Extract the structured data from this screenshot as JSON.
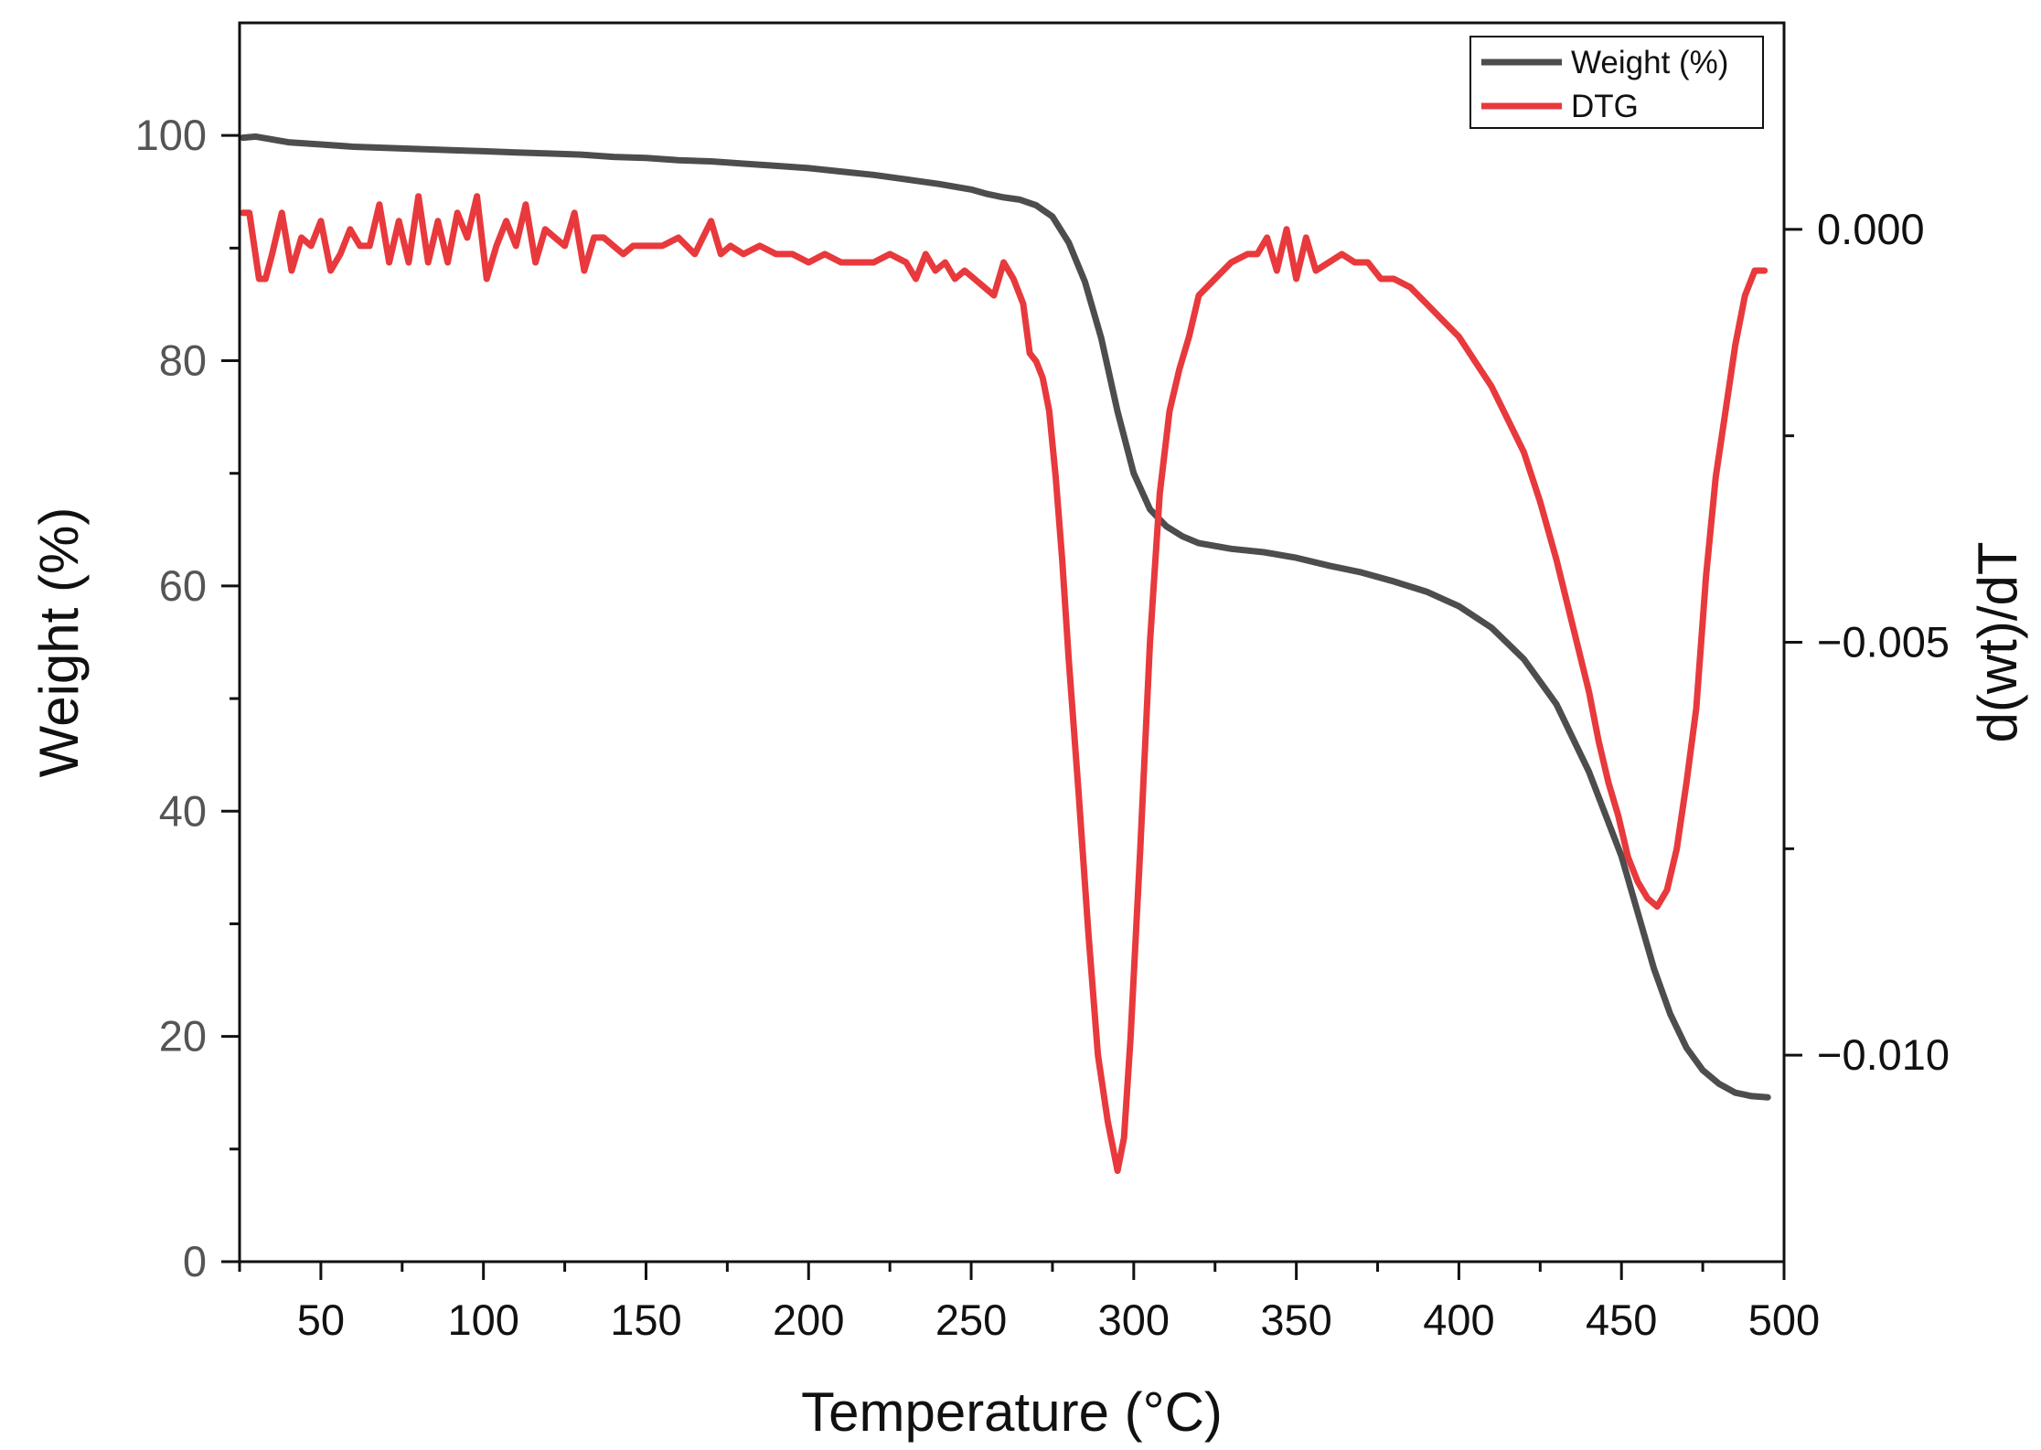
{
  "chart_data": {
    "type": "line",
    "title": "",
    "xlabel": "Temperature (°C)",
    "ylabel": "Weight (%)",
    "y2label": "d(wt)/dT",
    "xlim": [
      25,
      500
    ],
    "ylim": [
      0,
      110
    ],
    "y2lim": [
      -0.0125,
      0.0025
    ],
    "xticks": [
      50,
      100,
      150,
      200,
      250,
      300,
      350,
      400,
      450,
      500
    ],
    "xtick_labels": [
      "50",
      "100",
      "150",
      "200",
      "250",
      "300",
      "350",
      "400",
      "450",
      "500"
    ],
    "yticks": [
      0,
      20,
      40,
      60,
      80,
      100
    ],
    "ytick_labels": [
      "0",
      "20",
      "40",
      "60",
      "80",
      "100"
    ],
    "y2ticks": [
      0.0,
      -0.005,
      -0.01
    ],
    "y2tick_labels": [
      "0.000",
      "−0.005",
      "−0.010"
    ],
    "y2minor": [
      -0.0025,
      -0.0075
    ],
    "legend": {
      "position": "top-right",
      "entries": [
        "Weight (%)",
        "DTG"
      ]
    },
    "series": [
      {
        "name": "Weight (%)",
        "axis": "left",
        "color": "#4d4d4d",
        "x": [
          26,
          30,
          40,
          50,
          60,
          70,
          80,
          90,
          100,
          110,
          120,
          130,
          140,
          150,
          160,
          170,
          180,
          190,
          200,
          210,
          220,
          230,
          240,
          250,
          255,
          260,
          265,
          270,
          275,
          280,
          285,
          290,
          295,
          300,
          305,
          310,
          315,
          320,
          330,
          340,
          350,
          360,
          370,
          380,
          390,
          400,
          410,
          420,
          430,
          440,
          450,
          455,
          460,
          465,
          470,
          475,
          480,
          485,
          490,
          495
        ],
        "values": [
          99.8,
          99.9,
          99.4,
          99.2,
          99.0,
          98.9,
          98.8,
          98.7,
          98.6,
          98.5,
          98.4,
          98.3,
          98.1,
          98.0,
          97.8,
          97.7,
          97.5,
          97.3,
          97.1,
          96.8,
          96.5,
          96.1,
          95.7,
          95.2,
          94.8,
          94.5,
          94.3,
          93.8,
          92.8,
          90.5,
          87.0,
          82.0,
          75.5,
          70.0,
          66.8,
          65.3,
          64.4,
          63.8,
          63.3,
          63.0,
          62.5,
          61.8,
          61.2,
          60.4,
          59.5,
          58.2,
          56.3,
          53.5,
          49.5,
          43.5,
          36.0,
          31.0,
          26.0,
          22.0,
          19.0,
          17.0,
          15.8,
          15.0,
          14.7,
          14.6
        ]
      },
      {
        "name": "DTG",
        "axis": "right",
        "color": "#e8393c",
        "x": [
          26,
          28,
          31,
          33,
          35,
          38,
          41,
          44,
          47,
          50,
          53,
          56,
          59,
          62,
          65,
          68,
          71,
          74,
          77,
          80,
          83,
          86,
          89,
          92,
          95,
          98,
          101,
          104,
          107,
          110,
          113,
          116,
          119,
          122,
          125,
          128,
          131,
          134,
          137,
          140,
          143,
          146,
          150,
          155,
          160,
          165,
          170,
          173,
          176,
          180,
          185,
          190,
          195,
          200,
          205,
          210,
          215,
          220,
          225,
          230,
          233,
          236,
          239,
          242,
          245,
          248,
          251,
          254,
          257,
          260,
          263,
          266,
          268,
          270,
          272,
          274,
          276,
          278,
          280,
          283,
          286,
          289,
          292,
          295,
          297,
          299,
          302,
          305,
          308,
          311,
          314,
          317,
          320,
          325,
          330,
          335,
          338,
          341,
          344,
          347,
          350,
          353,
          356,
          360,
          364,
          368,
          372,
          376,
          380,
          385,
          390,
          395,
          400,
          405,
          410,
          415,
          420,
          425,
          430,
          435,
          440,
          443,
          446,
          449,
          452,
          455,
          458,
          461,
          464,
          467,
          470,
          473,
          476,
          479,
          482,
          485,
          488,
          491,
          494
        ],
        "values": [
          0.0002,
          0.0002,
          -0.0006,
          -0.0006,
          -0.0003,
          0.0002,
          -0.0005,
          -0.0001,
          -0.0002,
          0.0001,
          -0.0005,
          -0.0003,
          0.0,
          -0.0002,
          -0.0002,
          0.0003,
          -0.0004,
          0.0001,
          -0.0004,
          0.0004,
          -0.0004,
          0.0001,
          -0.0004,
          0.0002,
          -0.0001,
          0.0004,
          -0.0006,
          -0.0002,
          0.0001,
          -0.0002,
          0.0003,
          -0.0004,
          0.0,
          -0.0001,
          -0.0002,
          0.0002,
          -0.0005,
          -0.0001,
          -0.0001,
          -0.0002,
          -0.0003,
          -0.0002,
          -0.0002,
          -0.0002,
          -0.0001,
          -0.0003,
          0.0001,
          -0.0003,
          -0.0002,
          -0.0003,
          -0.0002,
          -0.0003,
          -0.0003,
          -0.0004,
          -0.0003,
          -0.0004,
          -0.0004,
          -0.0004,
          -0.0003,
          -0.0004,
          -0.0006,
          -0.0003,
          -0.0005,
          -0.0004,
          -0.0006,
          -0.0005,
          -0.0006,
          -0.0007,
          -0.0008,
          -0.0004,
          -0.0006,
          -0.0009,
          -0.0015,
          -0.0016,
          -0.0018,
          -0.0022,
          -0.003,
          -0.004,
          -0.0052,
          -0.0068,
          -0.0085,
          -0.01,
          -0.0108,
          -0.0114,
          -0.011,
          -0.0098,
          -0.0075,
          -0.005,
          -0.0032,
          -0.0022,
          -0.0017,
          -0.0013,
          -0.0008,
          -0.0006,
          -0.0004,
          -0.0003,
          -0.0003,
          -0.0001,
          -0.0005,
          0.0,
          -0.0006,
          -0.0001,
          -0.0005,
          -0.0004,
          -0.0003,
          -0.0004,
          -0.0004,
          -0.0006,
          -0.0006,
          -0.0007,
          -0.0009,
          -0.0011,
          -0.0013,
          -0.0016,
          -0.0019,
          -0.0023,
          -0.0027,
          -0.0033,
          -0.004,
          -0.0048,
          -0.0056,
          -0.0062,
          -0.0067,
          -0.0071,
          -0.0076,
          -0.0079,
          -0.0081,
          -0.0082,
          -0.008,
          -0.0075,
          -0.0067,
          -0.0058,
          -0.0042,
          -0.003,
          -0.0022,
          -0.0014,
          -0.0008,
          -0.0005,
          -0.0005
        ]
      }
    ]
  }
}
